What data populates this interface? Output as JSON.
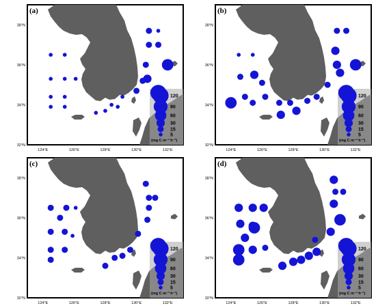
{
  "panels": [
    {
      "label": "(a)",
      "stations": [
        {
          "lon": 130.8,
          "lat": 37.7,
          "value": 15
        },
        {
          "lon": 131.4,
          "lat": 37.7,
          "value": 5
        },
        {
          "lon": 130.8,
          "lat": 37.0,
          "value": 15
        },
        {
          "lon": 131.4,
          "lat": 37.0,
          "value": 15
        },
        {
          "lon": 130.6,
          "lat": 36.0,
          "value": 15
        },
        {
          "lon": 132.0,
          "lat": 36.0,
          "value": 60
        },
        {
          "lon": 130.4,
          "lat": 35.2,
          "value": 15
        },
        {
          "lon": 130.0,
          "lat": 34.7,
          "value": 15
        },
        {
          "lon": 130.7,
          "lat": 35.3,
          "value": 30
        },
        {
          "lon": 124.5,
          "lat": 36.5,
          "value": 5
        },
        {
          "lon": 125.4,
          "lat": 36.5,
          "value": 5
        },
        {
          "lon": 124.5,
          "lat": 35.3,
          "value": 5
        },
        {
          "lon": 125.4,
          "lat": 35.3,
          "value": 5
        },
        {
          "lon": 126.1,
          "lat": 35.3,
          "value": 5
        },
        {
          "lon": 124.5,
          "lat": 34.4,
          "value": 5
        },
        {
          "lon": 125.4,
          "lat": 34.4,
          "value": 5
        },
        {
          "lon": 124.5,
          "lat": 33.9,
          "value": 5
        },
        {
          "lon": 125.4,
          "lat": 33.9,
          "value": 5
        },
        {
          "lon": 127.4,
          "lat": 33.6,
          "value": 5
        },
        {
          "lon": 128.0,
          "lat": 33.7,
          "value": 5
        },
        {
          "lon": 128.4,
          "lat": 34.0,
          "value": 5
        },
        {
          "lon": 128.8,
          "lat": 33.9,
          "value": 5
        },
        {
          "lon": 129.1,
          "lat": 34.4,
          "value": 5
        },
        {
          "lon": 131.4,
          "lat": 34.6,
          "value": 120
        }
      ]
    },
    {
      "label": "(b)",
      "stations": [
        {
          "lon": 130.8,
          "lat": 37.7,
          "value": 15
        },
        {
          "lon": 131.4,
          "lat": 37.7,
          "value": 15
        },
        {
          "lon": 130.7,
          "lat": 36.7,
          "value": 30
        },
        {
          "lon": 130.8,
          "lat": 36.0,
          "value": 30
        },
        {
          "lon": 131.0,
          "lat": 35.6,
          "value": 30
        },
        {
          "lon": 132.0,
          "lat": 36.0,
          "value": 60
        },
        {
          "lon": 130.2,
          "lat": 35.0,
          "value": 15
        },
        {
          "lon": 129.5,
          "lat": 34.4,
          "value": 15
        },
        {
          "lon": 124.5,
          "lat": 36.5,
          "value": 5
        },
        {
          "lon": 125.4,
          "lat": 36.5,
          "value": 5
        },
        {
          "lon": 124.6,
          "lat": 35.4,
          "value": 15
        },
        {
          "lon": 125.5,
          "lat": 35.5,
          "value": 30
        },
        {
          "lon": 126.0,
          "lat": 35.1,
          "value": 15
        },
        {
          "lon": 124.9,
          "lat": 34.4,
          "value": 15
        },
        {
          "lon": 126.2,
          "lat": 34.4,
          "value": 15
        },
        {
          "lon": 124.0,
          "lat": 34.1,
          "value": 60
        },
        {
          "lon": 125.4,
          "lat": 34.1,
          "value": 15
        },
        {
          "lon": 127.1,
          "lat": 34.1,
          "value": 15
        },
        {
          "lon": 127.8,
          "lat": 34.1,
          "value": 15
        },
        {
          "lon": 127.2,
          "lat": 33.5,
          "value": 30
        },
        {
          "lon": 128.2,
          "lat": 33.7,
          "value": 30
        },
        {
          "lon": 128.9,
          "lat": 34.2,
          "value": 15
        },
        {
          "lon": 131.4,
          "lat": 34.6,
          "value": 120
        }
      ]
    },
    {
      "label": "(c)",
      "stations": [
        {
          "lon": 130.6,
          "lat": 37.7,
          "value": 15
        },
        {
          "lon": 130.8,
          "lat": 37.0,
          "value": 15
        },
        {
          "lon": 131.2,
          "lat": 37.0,
          "value": 15
        },
        {
          "lon": 130.8,
          "lat": 36.5,
          "value": 15
        },
        {
          "lon": 130.7,
          "lat": 35.9,
          "value": 15
        },
        {
          "lon": 130.1,
          "lat": 35.2,
          "value": 15
        },
        {
          "lon": 124.5,
          "lat": 36.5,
          "value": 15
        },
        {
          "lon": 125.5,
          "lat": 36.5,
          "value": 15
        },
        {
          "lon": 126.1,
          "lat": 36.5,
          "value": 5
        },
        {
          "lon": 125.1,
          "lat": 36.0,
          "value": 15
        },
        {
          "lon": 124.5,
          "lat": 35.3,
          "value": 15
        },
        {
          "lon": 125.4,
          "lat": 35.3,
          "value": 15
        },
        {
          "lon": 125.9,
          "lat": 35.1,
          "value": 5
        },
        {
          "lon": 124.5,
          "lat": 34.4,
          "value": 15
        },
        {
          "lon": 125.4,
          "lat": 34.4,
          "value": 15
        },
        {
          "lon": 124.5,
          "lat": 33.9,
          "value": 15
        },
        {
          "lon": 128.0,
          "lat": 33.6,
          "value": 15
        },
        {
          "lon": 128.6,
          "lat": 34.0,
          "value": 15
        },
        {
          "lon": 129.1,
          "lat": 34.1,
          "value": 15
        },
        {
          "lon": 129.6,
          "lat": 34.4,
          "value": 15
        },
        {
          "lon": 131.4,
          "lat": 34.6,
          "value": 120
        }
      ]
    },
    {
      "label": "(d)",
      "stations": [
        {
          "lon": 130.6,
          "lat": 37.9,
          "value": 30
        },
        {
          "lon": 130.7,
          "lat": 37.3,
          "value": 15
        },
        {
          "lon": 131.2,
          "lat": 37.3,
          "value": 15
        },
        {
          "lon": 130.6,
          "lat": 36.7,
          "value": 30
        },
        {
          "lon": 131.0,
          "lat": 35.9,
          "value": 60
        },
        {
          "lon": 130.4,
          "lat": 35.3,
          "value": 30
        },
        {
          "lon": 129.4,
          "lat": 34.9,
          "value": 15
        },
        {
          "lon": 124.5,
          "lat": 36.5,
          "value": 30
        },
        {
          "lon": 125.4,
          "lat": 36.5,
          "value": 30
        },
        {
          "lon": 126.1,
          "lat": 36.5,
          "value": 30
        },
        {
          "lon": 124.6,
          "lat": 35.7,
          "value": 30
        },
        {
          "lon": 125.4,
          "lat": 35.6,
          "value": 30
        },
        {
          "lon": 125.5,
          "lat": 35.5,
          "value": 60
        },
        {
          "lon": 124.9,
          "lat": 35.0,
          "value": 30
        },
        {
          "lon": 124.5,
          "lat": 34.4,
          "value": 60
        },
        {
          "lon": 125.4,
          "lat": 34.4,
          "value": 30
        },
        {
          "lon": 124.5,
          "lat": 33.9,
          "value": 60
        },
        {
          "lon": 126.2,
          "lat": 34.5,
          "value": 15
        },
        {
          "lon": 127.3,
          "lat": 33.6,
          "value": 30
        },
        {
          "lon": 128.0,
          "lat": 33.8,
          "value": 30
        },
        {
          "lon": 128.5,
          "lat": 33.9,
          "value": 30
        },
        {
          "lon": 129.0,
          "lat": 34.1,
          "value": 30
        },
        {
          "lon": 129.5,
          "lat": 34.3,
          "value": 30
        },
        {
          "lon": 131.4,
          "lat": 34.6,
          "value": 120
        }
      ]
    }
  ],
  "axes": {
    "lon_ticks": [
      "124°E",
      "126°E",
      "128°E",
      "130°E",
      "132°E"
    ],
    "lat_ticks": [
      "38°N",
      "36°N",
      "34°N",
      "32°N"
    ],
    "lon_range": [
      123,
      133
    ],
    "lat_range": [
      32,
      39
    ]
  },
  "legend": {
    "values": [
      120,
      90,
      60,
      30,
      15,
      5
    ],
    "labels": [
      "120",
      "90",
      "60",
      "30",
      "15",
      "5"
    ],
    "unit": "(mg C  m⁻³ h⁻¹)"
  },
  "colors": {
    "land": "#5f5f5f",
    "land_light": "#a9a9a9",
    "dots": "#1414d6",
    "sea": "#ffffff"
  }
}
